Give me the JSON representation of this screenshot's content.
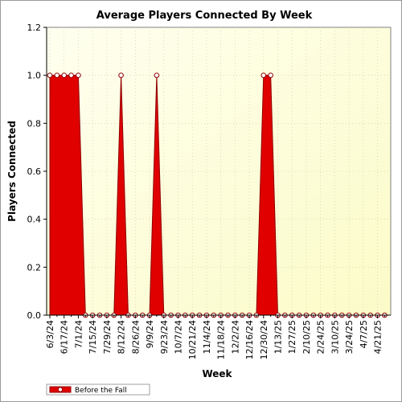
{
  "chart_data": {
    "type": "area",
    "title": "Average Players Connected By Week",
    "xlabel": "Week",
    "ylabel": "Players Connected",
    "ylim": [
      0,
      1.2
    ],
    "yticks": [
      "0.0",
      "0.2",
      "0.4",
      "0.6",
      "0.8",
      "1.0",
      "1.2"
    ],
    "xtick_labels": [
      "6/3/24",
      "6/17/24",
      "7/1/24",
      "7/15/24",
      "7/29/24",
      "8/12/24",
      "8/26/24",
      "9/9/24",
      "9/23/24",
      "10/7/24",
      "10/21/24",
      "11/4/24",
      "11/18/24",
      "12/2/24",
      "12/16/24",
      "12/30/24",
      "1/13/25",
      "1/27/25",
      "2/10/25",
      "2/24/25",
      "3/10/25",
      "3/24/25",
      "4/7/25",
      "4/21/25"
    ],
    "grid": true,
    "legend_position": "bottom-left",
    "colors": {
      "series": "#e00000",
      "edge": "#900000",
      "plot_bg_light": "#fffff0",
      "plot_bg_dark": "#fbfbc8"
    },
    "series": [
      {
        "name": "Before the Fall",
        "x": [
          "6/3/24",
          "6/10/24",
          "6/17/24",
          "6/24/24",
          "7/1/24",
          "7/8/24",
          "7/15/24",
          "7/22/24",
          "7/29/24",
          "8/5/24",
          "8/12/24",
          "8/19/24",
          "8/26/24",
          "9/2/24",
          "9/9/24",
          "9/16/24",
          "9/23/24",
          "9/30/24",
          "10/7/24",
          "10/14/24",
          "10/21/24",
          "10/28/24",
          "11/4/24",
          "11/11/24",
          "11/18/24",
          "11/25/24",
          "12/2/24",
          "12/9/24",
          "12/16/24",
          "12/23/24",
          "12/30/24",
          "1/6/25",
          "1/13/25",
          "1/20/25",
          "1/27/25",
          "2/3/25",
          "2/10/25",
          "2/17/25",
          "2/24/25",
          "3/3/25",
          "3/10/25",
          "3/17/25",
          "3/24/25",
          "3/31/25",
          "4/7/25",
          "4/14/25",
          "4/21/25",
          "4/28/25"
        ],
        "values": [
          1,
          1,
          1,
          1,
          1,
          0,
          0,
          0,
          0,
          0,
          1,
          0,
          0,
          0,
          0,
          1,
          0,
          0,
          0,
          0,
          0,
          0,
          0,
          0,
          0,
          0,
          0,
          0,
          0,
          0,
          1,
          1,
          0,
          0,
          0,
          0,
          0,
          0,
          0,
          0,
          0,
          0,
          0,
          0,
          0,
          0,
          0,
          0
        ]
      }
    ]
  }
}
